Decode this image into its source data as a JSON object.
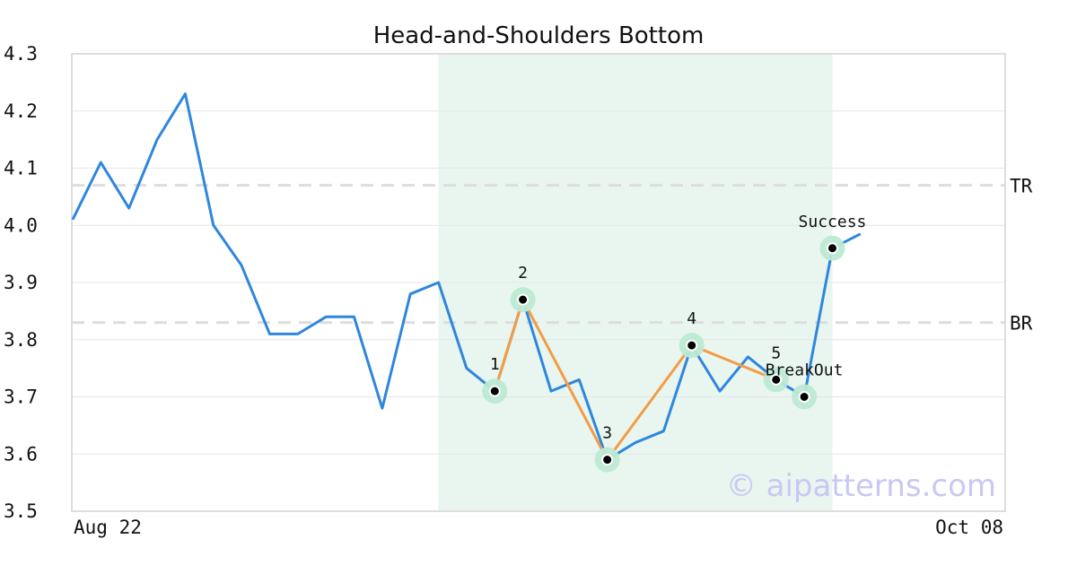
{
  "chart_data": {
    "type": "line",
    "title": "Head-and-Shoulders Bottom",
    "xlabel": "",
    "ylabel": "",
    "ylim": [
      3.5,
      4.3
    ],
    "y_ticks": [
      "3.5",
      "3.6",
      "3.7",
      "3.8",
      "3.9",
      "4.0",
      "4.1",
      "4.2",
      "4.3"
    ],
    "x_tick_labels": [
      "Aug 22",
      "Oct 08"
    ],
    "grid": true,
    "colors": {
      "price": "#2e86de",
      "pattern": "#f39c45",
      "highlight": "#e8f6ef",
      "marker_halo": "#bde9d3",
      "reference": "#dddddd"
    },
    "series": [
      {
        "values": [
          4.01,
          4.11,
          4.03,
          4.15,
          4.23,
          4.0,
          3.93,
          3.81,
          3.81,
          3.84,
          3.84,
          3.68,
          3.88,
          3.9,
          3.75,
          3.71,
          3.87,
          3.71,
          3.73,
          3.59,
          3.62,
          3.64,
          3.79,
          3.71,
          3.77,
          3.73,
          3.7,
          3.96,
          3.985
        ]
      }
    ],
    "pattern_path": [
      {
        "index": 15,
        "value": 3.71
      },
      {
        "index": 16,
        "value": 3.87
      },
      {
        "index": 19,
        "value": 3.59
      },
      {
        "index": 22,
        "value": 3.79
      },
      {
        "index": 25,
        "value": 3.73
      }
    ],
    "highlight_range": [
      13,
      27
    ],
    "reference_lines": [
      {
        "label": "TR",
        "value": 4.07
      },
      {
        "label": "BR",
        "value": 3.83
      }
    ],
    "points": [
      {
        "label": "1",
        "index": 15,
        "value": 3.71
      },
      {
        "label": "2",
        "index": 16,
        "value": 3.87
      },
      {
        "label": "3",
        "index": 19,
        "value": 3.59
      },
      {
        "label": "4",
        "index": 22,
        "value": 3.79
      },
      {
        "label": "5",
        "index": 25,
        "value": 3.73
      },
      {
        "label": "BreakOut",
        "index": 26,
        "value": 3.7
      },
      {
        "label": "Success",
        "index": 27,
        "value": 3.96
      }
    ],
    "x_count": 34,
    "watermark": "© aipatterns.com"
  }
}
